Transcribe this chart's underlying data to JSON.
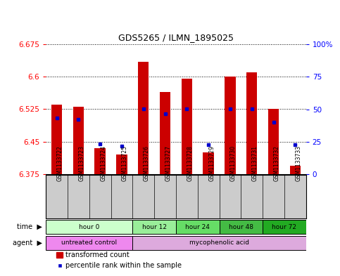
{
  "title": "GDS5265 / ILMN_1895025",
  "samples": [
    "GSM1133722",
    "GSM1133723",
    "GSM1133724",
    "GSM1133725",
    "GSM1133726",
    "GSM1133727",
    "GSM1133728",
    "GSM1133729",
    "GSM1133730",
    "GSM1133731",
    "GSM1133732",
    "GSM1133733"
  ],
  "bar_values": [
    6.535,
    6.53,
    6.435,
    6.42,
    6.635,
    6.565,
    6.595,
    6.425,
    6.6,
    6.61,
    6.525,
    6.395
  ],
  "bar_base": 6.375,
  "percentile_values": [
    6.505,
    6.502,
    6.445,
    6.44,
    6.526,
    6.515,
    6.526,
    6.443,
    6.526,
    6.526,
    6.495,
    6.443
  ],
  "ylim_left": [
    6.375,
    6.675
  ],
  "yticks_left": [
    6.375,
    6.45,
    6.525,
    6.6,
    6.675
  ],
  "ytick_labels_left": [
    "6.375",
    "6.45",
    "6.525",
    "6.6",
    "6.675"
  ],
  "ylim_right": [
    0,
    100
  ],
  "yticks_right": [
    0,
    25,
    50,
    75,
    100
  ],
  "ytick_labels_right": [
    "0",
    "25",
    "50",
    "75",
    "100%"
  ],
  "bar_color": "#cc0000",
  "percentile_color": "#0000cc",
  "plot_bg_color": "#ffffff",
  "label_band_color": "#cccccc",
  "time_groups": [
    {
      "label": "hour 0",
      "start": 0,
      "end": 4,
      "color": "#ccffcc"
    },
    {
      "label": "hour 12",
      "start": 4,
      "end": 6,
      "color": "#99ee99"
    },
    {
      "label": "hour 24",
      "start": 6,
      "end": 8,
      "color": "#66dd66"
    },
    {
      "label": "hour 48",
      "start": 8,
      "end": 10,
      "color": "#44bb44"
    },
    {
      "label": "hour 72",
      "start": 10,
      "end": 12,
      "color": "#22aa22"
    }
  ],
  "agent_groups": [
    {
      "label": "untreated control",
      "start": 0,
      "end": 4,
      "color": "#ee88ee"
    },
    {
      "label": "mycophenolic acid",
      "start": 4,
      "end": 12,
      "color": "#ddaadd"
    }
  ],
  "legend_bar_label": "transformed count",
  "legend_pct_label": "percentile rank within the sample",
  "time_label": "time",
  "agent_label": "agent"
}
